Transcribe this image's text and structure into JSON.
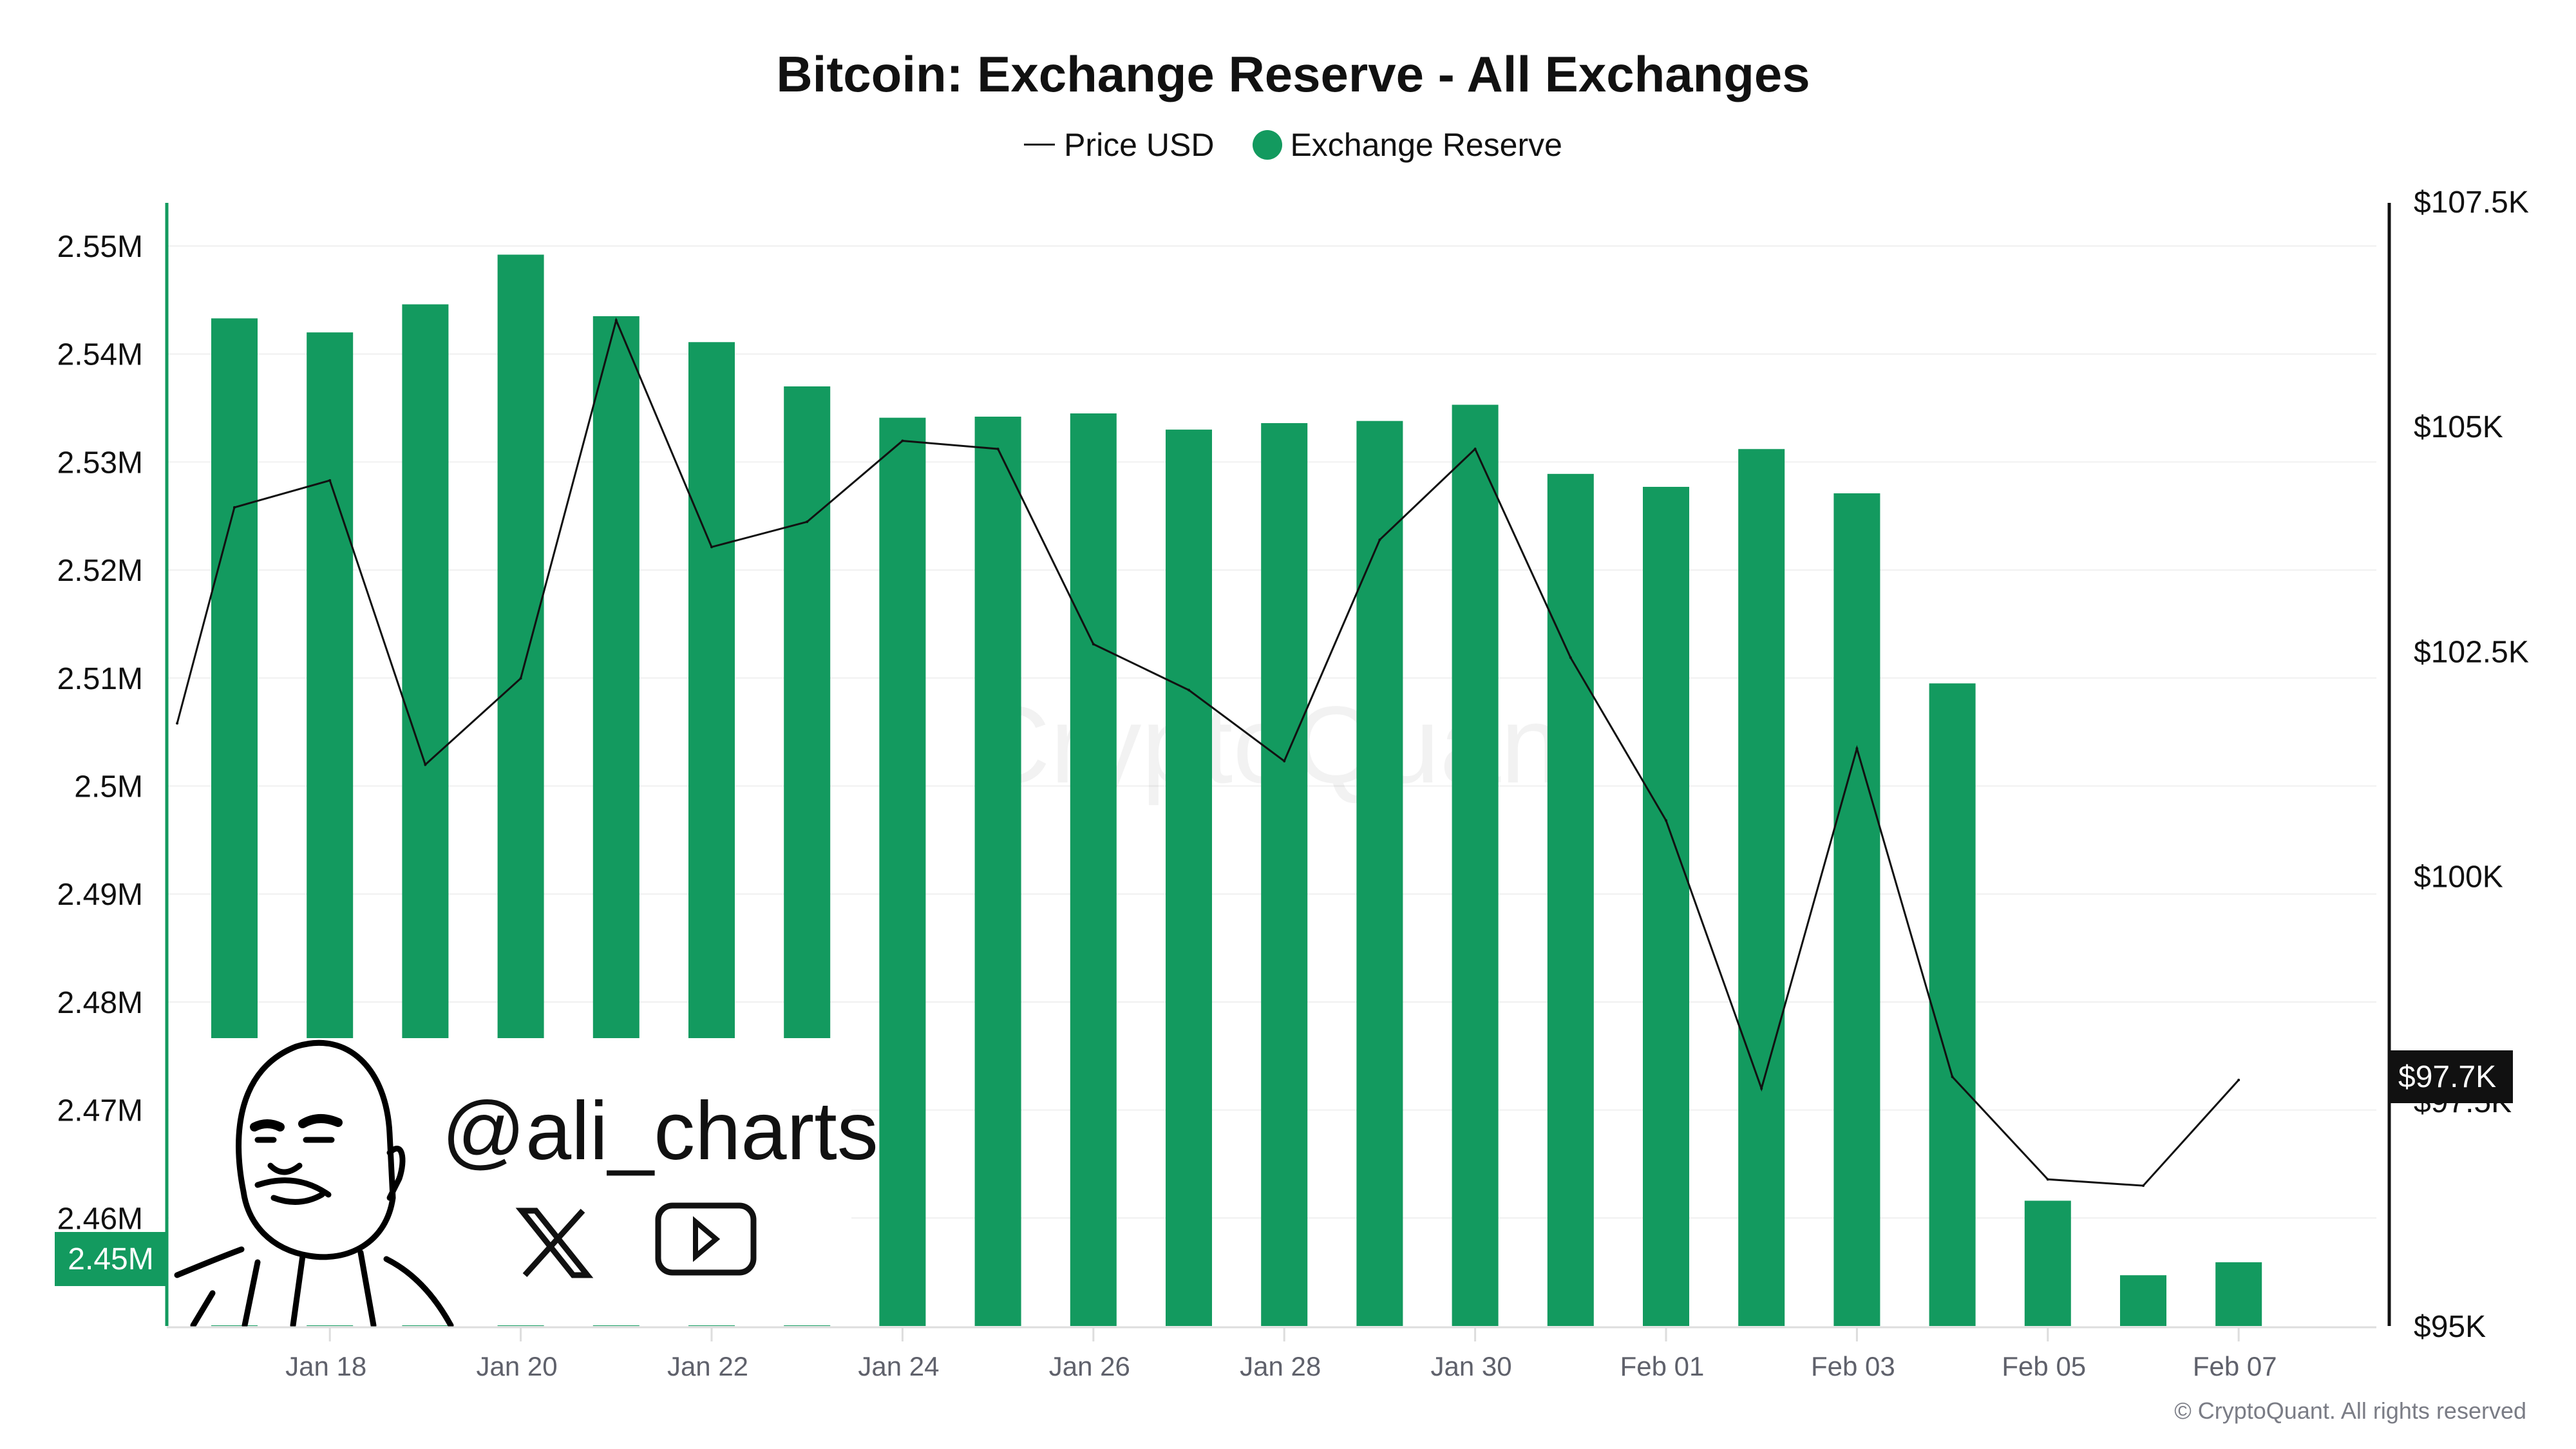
{
  "chart_data": {
    "type": "bar",
    "title": "Bitcoin: Exchange Reserve - All Exchanges",
    "legend": [
      "Price USD",
      "Exchange Reserve"
    ],
    "legend_position": "top",
    "categories": [
      "Jan 17",
      "Jan 18",
      "Jan 19",
      "Jan 20",
      "Jan 21",
      "Jan 22",
      "Jan 23",
      "Jan 24",
      "Jan 25",
      "Jan 26",
      "Jan 27",
      "Jan 28",
      "Jan 29",
      "Jan 30",
      "Jan 31",
      "Feb 01",
      "Feb 02",
      "Feb 03",
      "Feb 04",
      "Feb 05",
      "Feb 06",
      "Feb 07"
    ],
    "x_tick_labels": [
      "Jan 18",
      "Jan 20",
      "Jan 22",
      "Jan 24",
      "Jan 26",
      "Jan 28",
      "Jan 30",
      "Feb 01",
      "Feb 03",
      "Feb 05",
      "Feb 07"
    ],
    "series": [
      {
        "name": "Exchange Reserve",
        "type": "bar",
        "axis": "left",
        "color": "#139a5f",
        "values": [
          2543300,
          2542000,
          2544600,
          2549200,
          2543500,
          2541100,
          2537000,
          2534100,
          2534200,
          2534500,
          2533000,
          2533600,
          2533800,
          2535300,
          2528900,
          2527700,
          2531200,
          2527100,
          2509500,
          2461600,
          2454700,
          2455900
        ]
      },
      {
        "name": "Price USD",
        "type": "line",
        "axis": "right",
        "color": "#111111",
        "x": [
          -0.6,
          0,
          1,
          2,
          3,
          4,
          5,
          6,
          7,
          8,
          9,
          10,
          11,
          12,
          13,
          14,
          15,
          16,
          17,
          18,
          19,
          20,
          21
        ],
        "values": [
          101700,
          104100,
          104400,
          101240,
          102200,
          106180,
          103660,
          103940,
          104840,
          104750,
          102580,
          102070,
          101280,
          103740,
          104750,
          102430,
          100620,
          97640,
          101420,
          97770,
          96630,
          96560,
          97735
        ]
      }
    ],
    "y_left": {
      "range": [
        2450000,
        2554000
      ],
      "ticks": [
        2550000,
        2540000,
        2530000,
        2520000,
        2510000,
        2500000,
        2490000,
        2480000,
        2470000,
        2460000
      ],
      "tick_labels": [
        "2.55M",
        "2.54M",
        "2.53M",
        "2.52M",
        "2.51M",
        "2.5M",
        "2.49M",
        "2.48M",
        "2.47M",
        "2.46M"
      ],
      "current_label": "2.45M"
    },
    "y_right": {
      "range": [
        95000,
        107500
      ],
      "ticks": [
        107500,
        105000,
        102500,
        100000,
        97500,
        95000
      ],
      "tick_labels": [
        "$107.5K",
        "$105K",
        "$102.5K",
        "$100K",
        "$97.5K",
        "$95K"
      ],
      "current_label": "$97.7K"
    },
    "grid": true
  },
  "watermark": "CryptoQuant",
  "overlay": {
    "handle": "@ali_charts",
    "icons": [
      "x-logo-icon",
      "youtube-icon"
    ]
  },
  "copyright": "© CryptoQuant. All rights reserved"
}
